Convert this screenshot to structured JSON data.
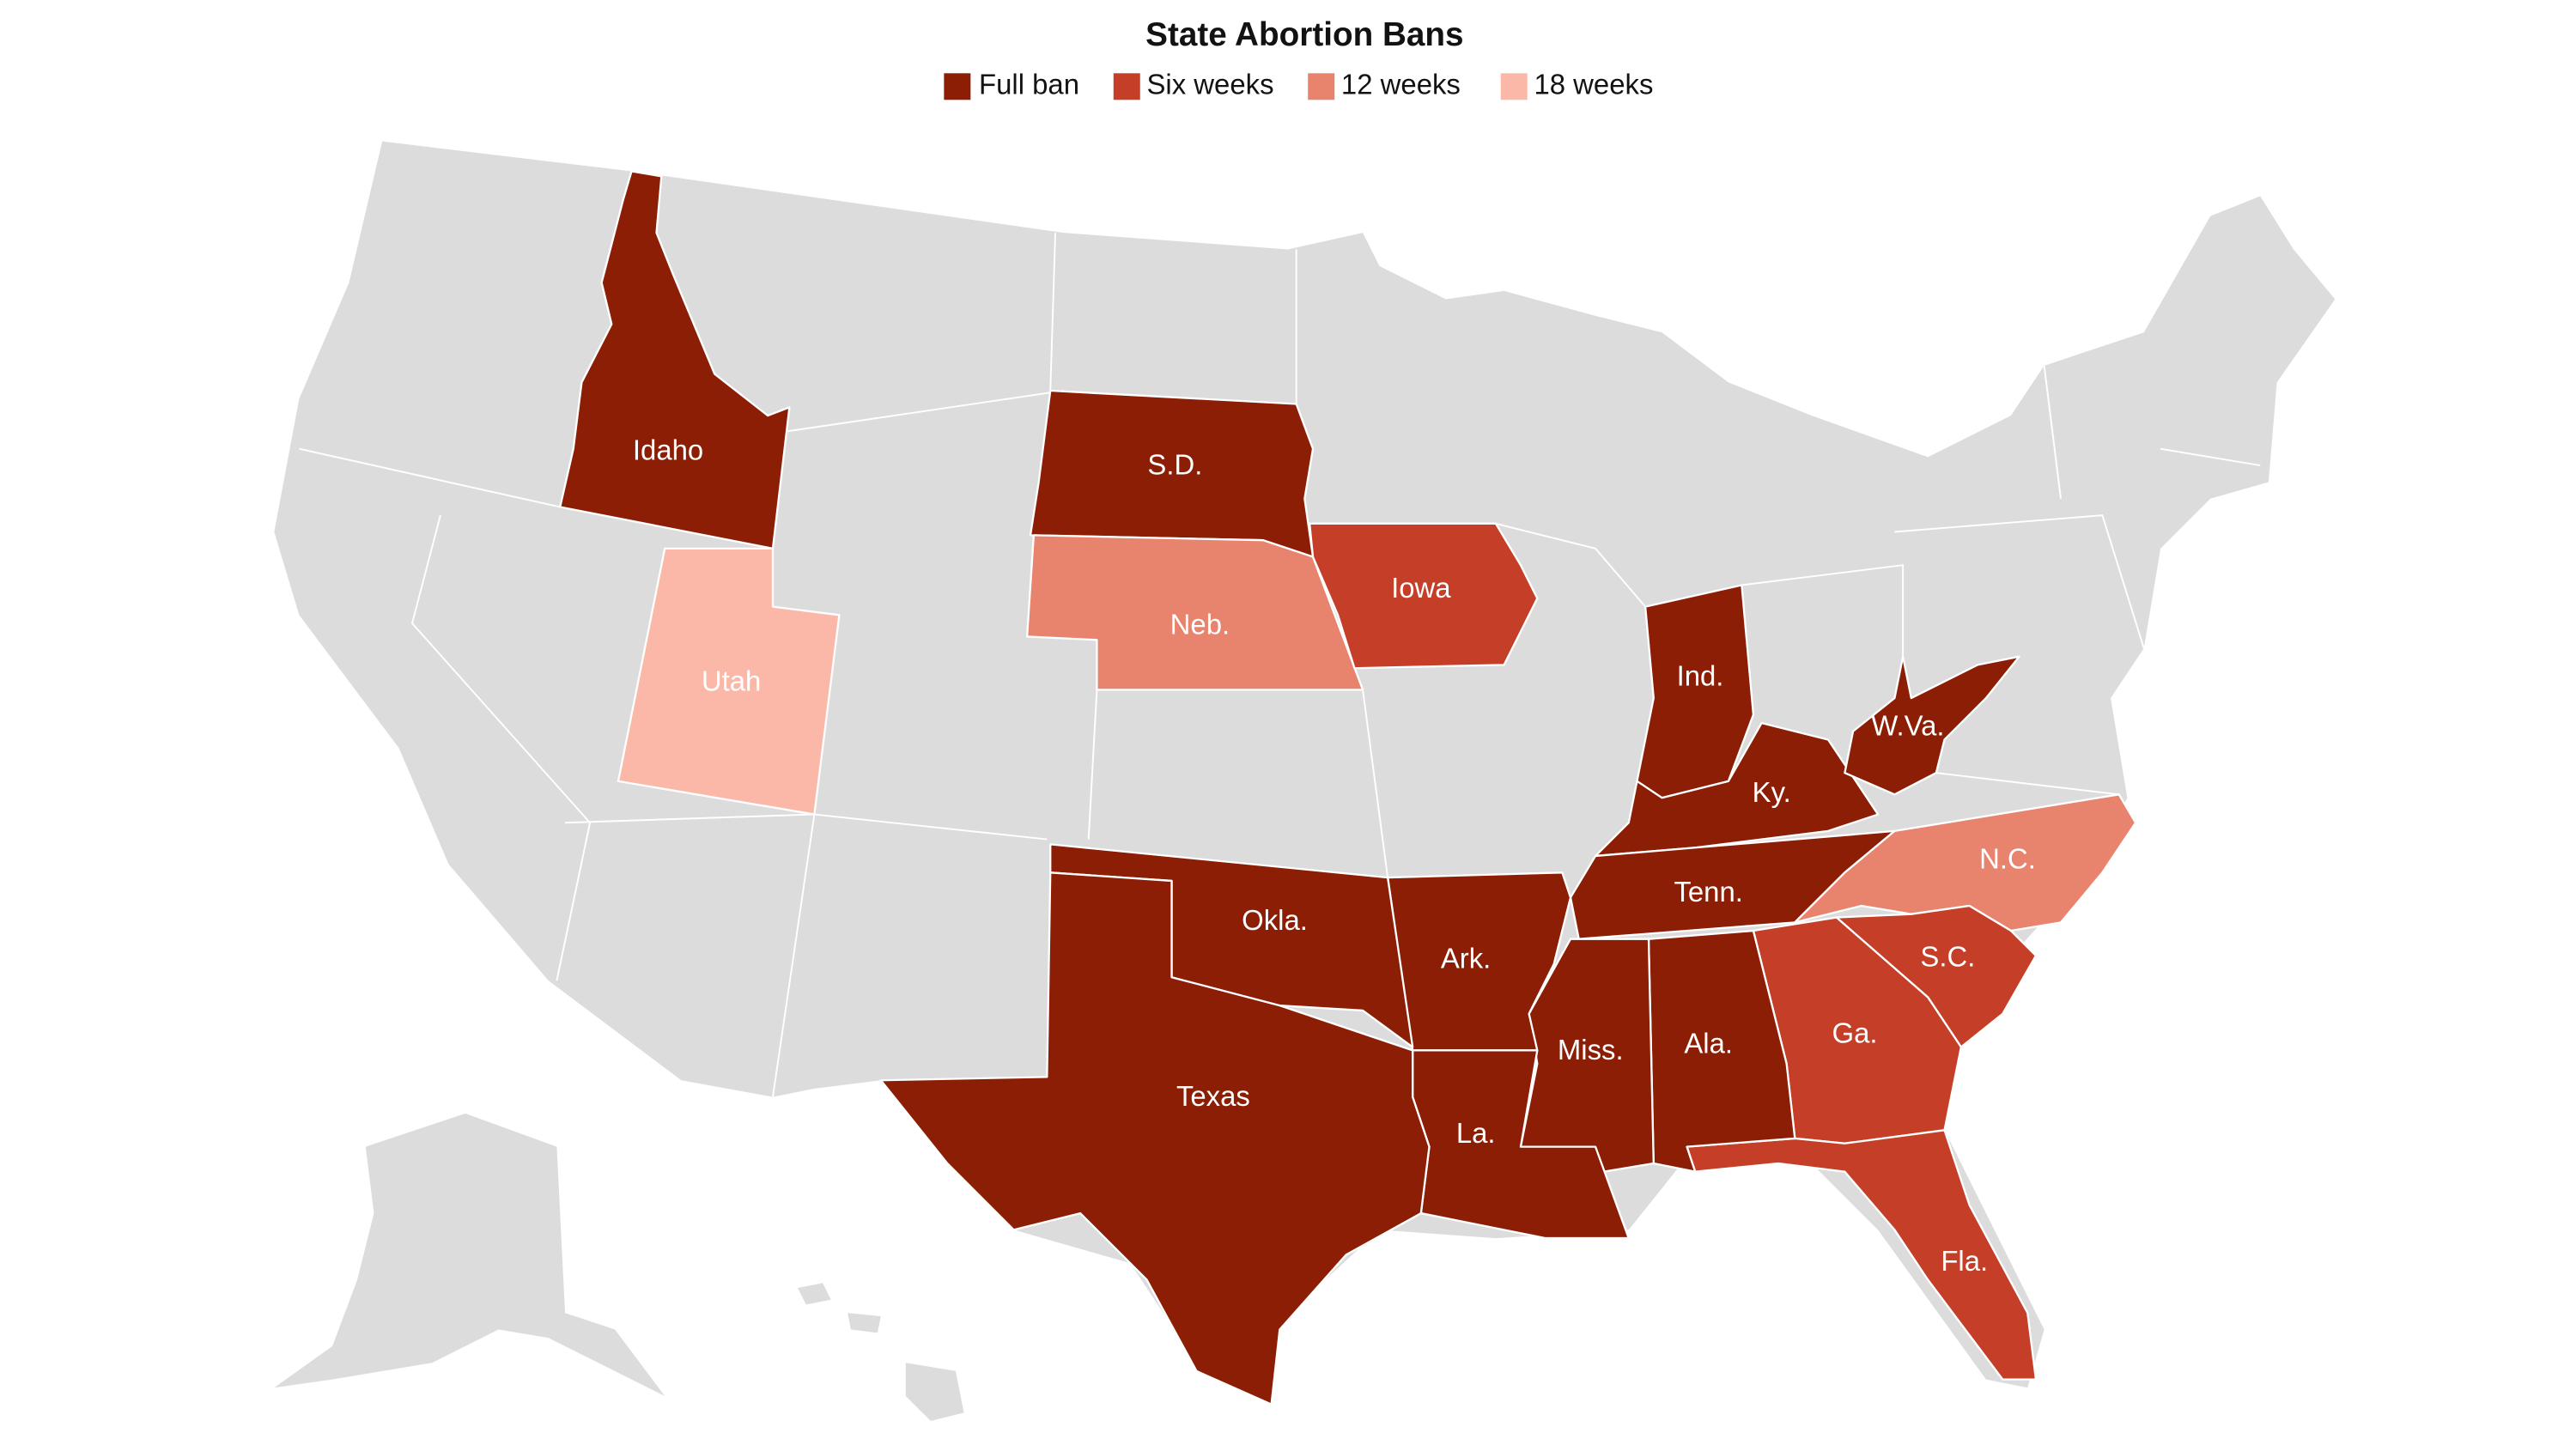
{
  "title": "State Abortion Bans",
  "legend": [
    {
      "label": "Full ban",
      "color": "#8b1e04",
      "states": [
        "Idaho",
        "S.D.",
        "Ind.",
        "Ky.",
        "W.Va.",
        "Tenn.",
        "Ala.",
        "Miss.",
        "Ark.",
        "La.",
        "Okla.",
        "Texas"
      ]
    },
    {
      "label": "Six weeks",
      "color": "#c43e28",
      "states": [
        "Iowa",
        "S.C.",
        "Ga.",
        "Fla."
      ]
    },
    {
      "label": "12 weeks",
      "color": "#e8836e",
      "states": [
        "Neb.",
        "N.C."
      ]
    },
    {
      "label": "18 weeks",
      "color": "#fbb8a9",
      "states": [
        "Utah"
      ]
    }
  ]
}
